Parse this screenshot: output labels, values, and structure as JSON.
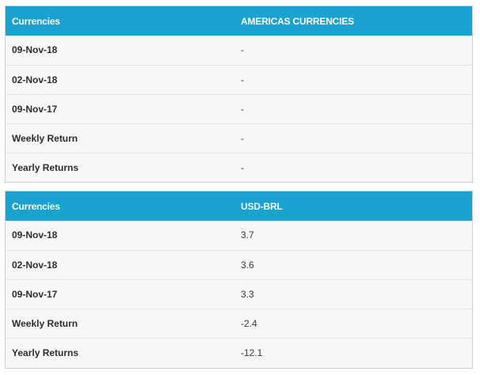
{
  "tables": [
    {
      "header": {
        "col1": "Currencies",
        "col2": "AMERICAS CURRENCIES"
      },
      "rows": [
        {
          "label": "09-Nov-18",
          "value": "-"
        },
        {
          "label": "02-Nov-18",
          "value": "-"
        },
        {
          "label": "09-Nov-17",
          "value": "-"
        },
        {
          "label": "Weekly Return",
          "value": "-"
        },
        {
          "label": "Yearly Returns",
          "value": "-"
        }
      ]
    },
    {
      "header": {
        "col1": "Currencies",
        "col2": "USD-BRL"
      },
      "rows": [
        {
          "label": "09-Nov-18",
          "value": "3.7"
        },
        {
          "label": "02-Nov-18",
          "value": "3.6"
        },
        {
          "label": "09-Nov-17",
          "value": "3.3"
        },
        {
          "label": "Weekly Return",
          "value": "-2.4"
        },
        {
          "label": "Yearly Returns",
          "value": "-12.1"
        }
      ]
    }
  ]
}
